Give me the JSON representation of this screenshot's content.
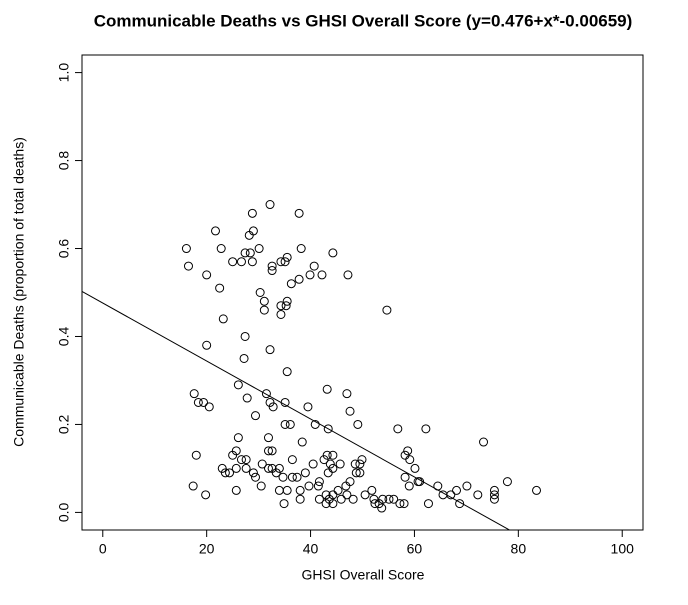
{
  "chart_data": {
    "type": "scatter",
    "title": "Communicable Deaths vs GHSI Overall Score (y=0.476+x*-0.00659)",
    "x_label": "GHSI Overall Score",
    "y_label": "Communicable Deaths (proportion of total deaths)",
    "color": "#000000",
    "line": {
      "intercept": 0.476,
      "slope": -0.00659
    },
    "xlim": [
      -4,
      104
    ],
    "ylim": [
      -0.04,
      1.04
    ],
    "xticks": [
      0,
      20,
      40,
      60,
      80,
      100
    ],
    "yticks": [
      {
        "value": 0,
        "label": "0.0"
      },
      {
        "value": 0.2,
        "label": "0.2"
      },
      {
        "value": 0.4,
        "label": "0.4"
      },
      {
        "value": 0.6,
        "label": "0.6"
      },
      {
        "value": 0.8,
        "label": "0.8"
      },
      {
        "value": 1,
        "label": "1.0"
      }
    ],
    "x": [
      16.1,
      16.5,
      21.7,
      22.8,
      20,
      22.5,
      23.2,
      20,
      25,
      26.7,
      27.4,
      28.2,
      28.8,
      29,
      28.4,
      28.8,
      30.1,
      30.3,
      31.1,
      31.1,
      32.2,
      32.6,
      32.6,
      34.3,
      35.1,
      35.5,
      36.3,
      35.5,
      35.3,
      34.3,
      34.3,
      37.8,
      38.2,
      37.8,
      39.9,
      40.7,
      42.2,
      44.3,
      47.2,
      54.7,
      32.2,
      27.4,
      27.2,
      35.5,
      17.6,
      18.4,
      19.4,
      20.5,
      26.1,
      27.8,
      29.4,
      31.5,
      32.2,
      32.8,
      35.1,
      35.1,
      36.1,
      39.5,
      38.4,
      40.9,
      43.2,
      43.4,
      47,
      47.6,
      49.1,
      56.8,
      62.2,
      73.3,
      18,
      17.4,
      19.8,
      23,
      23.6,
      24.4,
      25,
      25.7,
      26.1,
      26.7,
      25.7,
      27.6,
      27.6,
      25.7,
      29,
      29.4,
      30.5,
      30.7,
      31.9,
      31.9,
      31.9,
      32.6,
      32.6,
      33.4,
      34,
      34,
      34.7,
      35.5,
      34.9,
      36.5,
      36.5,
      37.4,
      38,
      38,
      39,
      39.7,
      40.5,
      41.5,
      41.7,
      42.6,
      43.2,
      43.4,
      43.8,
      44.3,
      44.3,
      43,
      43.6,
      43,
      44.3,
      44.3,
      45.7,
      45.3,
      45.9,
      46.8,
      47,
      47.6,
      48.6,
      49.5,
      48.8,
      49.5,
      49.9,
      50.5,
      48.2,
      51.8,
      52.2,
      52.4,
      53.2,
      53.9,
      53.7,
      55.1,
      56,
      57.2,
      58.2,
      58.7,
      59.1,
      58.2,
      59,
      58,
      60.1,
      60.7,
      61,
      62.7,
      64.5,
      65.5,
      67,
      68.1,
      68.7,
      70.1,
      72.2,
      75.4,
      75.4,
      75.4,
      77.9,
      83.5,
      41.7
    ],
    "y": [
      0.6,
      0.56,
      0.64,
      0.6,
      0.54,
      0.51,
      0.44,
      0.38,
      0.57,
      0.57,
      0.59,
      0.63,
      0.68,
      0.64,
      0.59,
      0.57,
      0.6,
      0.5,
      0.48,
      0.46,
      0.7,
      0.56,
      0.55,
      0.57,
      0.57,
      0.58,
      0.52,
      0.48,
      0.47,
      0.47,
      0.45,
      0.53,
      0.6,
      0.68,
      0.54,
      0.56,
      0.54,
      0.59,
      0.54,
      0.46,
      0.37,
      0.4,
      0.35,
      0.32,
      0.27,
      0.25,
      0.25,
      0.24,
      0.29,
      0.26,
      0.22,
      0.27,
      0.25,
      0.24,
      0.25,
      0.2,
      0.2,
      0.24,
      0.16,
      0.2,
      0.28,
      0.19,
      0.27,
      0.23,
      0.2,
      0.19,
      0.19,
      0.16,
      0.13,
      0.06,
      0.04,
      0.1,
      0.09,
      0.09,
      0.13,
      0.14,
      0.17,
      0.12,
      0.1,
      0.1,
      0.12,
      0.05,
      0.09,
      0.08,
      0.06,
      0.11,
      0.17,
      0.14,
      0.1,
      0.14,
      0.1,
      0.09,
      0.1,
      0.05,
      0.08,
      0.05,
      0.02,
      0.12,
      0.08,
      0.08,
      0.05,
      0.03,
      0.09,
      0.06,
      0.11,
      0.06,
      0.07,
      0.12,
      0.13,
      0.09,
      0.11,
      0.13,
      0.1,
      0.04,
      0.03,
      0.02,
      0.04,
      0.02,
      0.11,
      0.05,
      0.03,
      0.06,
      0.04,
      0.07,
      0.11,
      0.11,
      0.09,
      0.09,
      0.12,
      0.04,
      0.03,
      0.05,
      0.03,
      0.02,
      0.02,
      0.03,
      0.01,
      0.03,
      0.03,
      0.02,
      0.13,
      0.14,
      0.12,
      0.08,
      0.06,
      0.02,
      0.1,
      0.07,
      0.07,
      0.02,
      0.06,
      0.04,
      0.04,
      0.05,
      0.02,
      0.06,
      0.04,
      0.04,
      0.05,
      0.03,
      0.07,
      0.05,
      0.03
    ]
  }
}
